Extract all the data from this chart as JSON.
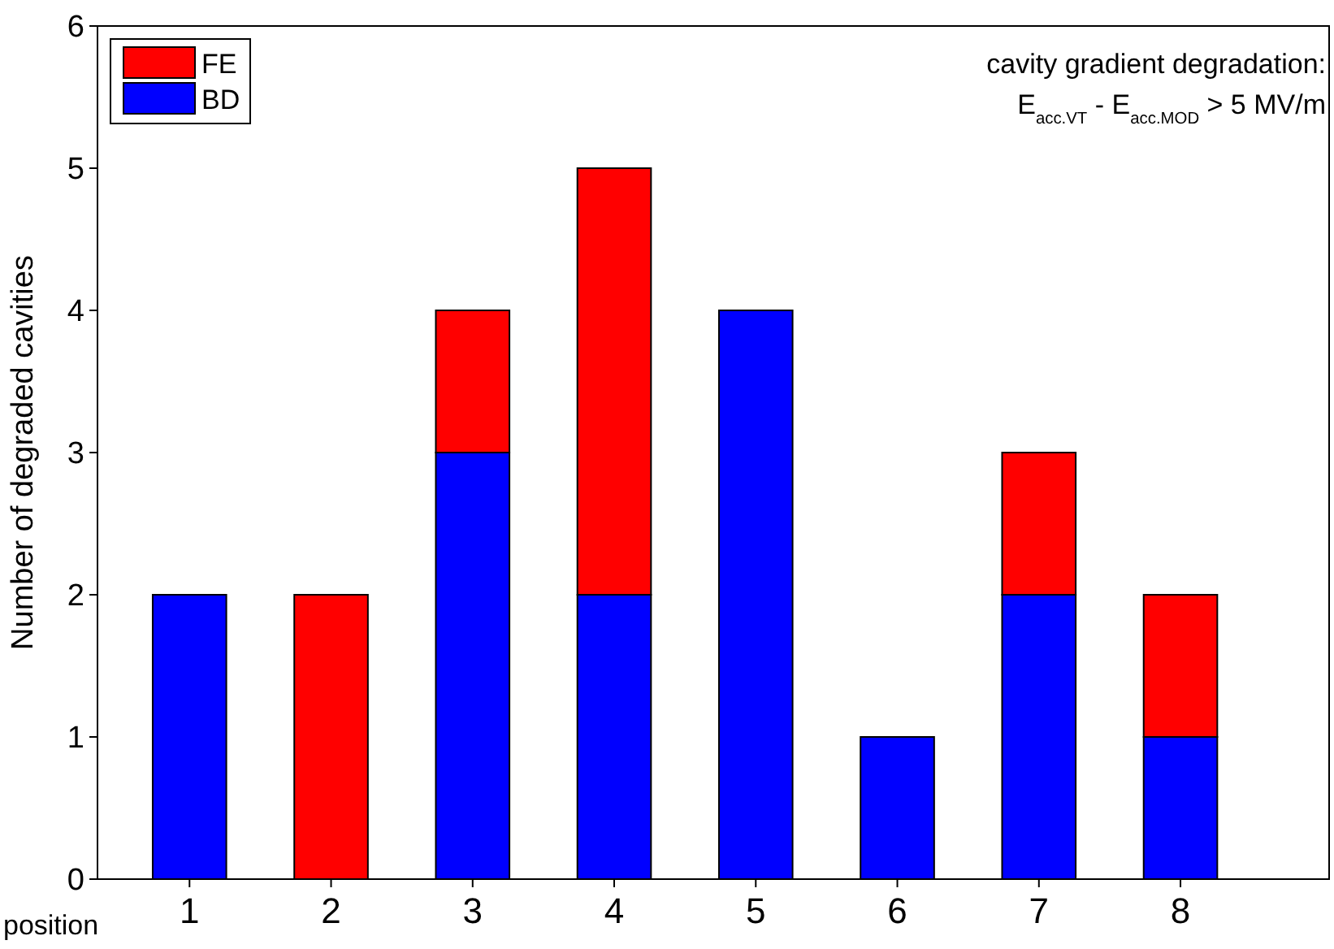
{
  "chart_data": {
    "type": "bar",
    "stacked": true,
    "xlabel": "position",
    "ylabel": "Number of degraded cavities",
    "categories": [
      "1",
      "2",
      "3",
      "4",
      "5",
      "6",
      "7",
      "8"
    ],
    "series": [
      {
        "name": "BD",
        "color": "#0000ff",
        "values": [
          2,
          0,
          3,
          2,
          4,
          1,
          2,
          1
        ]
      },
      {
        "name": "FE",
        "color": "#ff0000",
        "values": [
          0,
          2,
          1,
          3,
          0,
          0,
          1,
          1
        ]
      }
    ],
    "ylim": [
      0,
      6
    ],
    "yticks": [
      0,
      1,
      2,
      3,
      4,
      5,
      6
    ],
    "legend": "top left",
    "grid": false,
    "annotations": [
      "cavity gradient degradation:",
      "E$_{acc.VT}$ - E$_{acc.MOD}$ > 5 MV/m"
    ]
  }
}
